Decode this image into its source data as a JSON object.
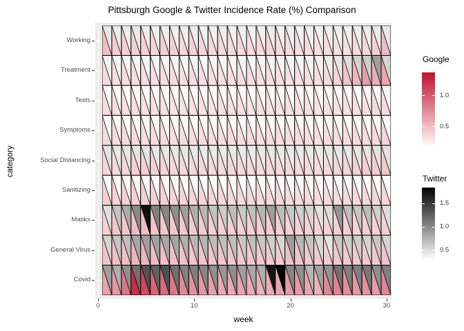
{
  "chart_data": {
    "type": "heatmap",
    "variant": "split-triangle-cells",
    "title": "Pittsburgh Google & Twitter Incidence Rate (%) Comparison",
    "xlabel": "week",
    "ylabel": "category",
    "x_ticks": [
      0,
      10,
      20,
      30
    ],
    "x_minor_ticks": [
      5,
      15,
      25
    ],
    "x_range": [
      0,
      30.5
    ],
    "weeks": 30,
    "panel_background": "#ebebeb",
    "cell_border_color": "#000000",
    "triangle_layout": {
      "lower_left": "Google",
      "upper_right": "Twitter"
    },
    "categories": [
      "Working",
      "Treatment",
      "Tests",
      "Symptoms",
      "Social Distancing",
      "Sanitizing",
      "Masks",
      "General Virus",
      "Covid"
    ],
    "series": [
      {
        "category": "Working",
        "google": [
          0.45,
          0.38,
          0.36,
          0.36,
          0.35,
          0.33,
          0.35,
          0.35,
          0.32,
          0.34,
          0.32,
          0.31,
          0.31,
          0.3,
          0.31,
          0.3,
          0.3,
          0.33,
          0.3,
          0.3,
          0.28,
          0.3,
          0.27,
          0.3,
          0.27,
          0.27,
          0.3,
          0.32,
          0.36,
          0.46
        ],
        "twitter": [
          0.4,
          0.38,
          0.36,
          0.38,
          0.36,
          0.35,
          0.36,
          0.35,
          0.35,
          0.36,
          0.35,
          0.34,
          0.35,
          0.34,
          0.35,
          0.34,
          0.35,
          0.36,
          0.34,
          0.35,
          0.33,
          0.34,
          0.33,
          0.34,
          0.33,
          0.34,
          0.35,
          0.36,
          0.38,
          0.4
        ]
      },
      {
        "category": "Treatment",
        "google": [
          0.3,
          0.29,
          0.28,
          0.29,
          0.28,
          0.28,
          0.28,
          0.28,
          0.27,
          0.28,
          0.27,
          0.27,
          0.27,
          0.27,
          0.27,
          0.27,
          0.27,
          0.28,
          0.27,
          0.27,
          0.27,
          0.28,
          0.28,
          0.3,
          0.33,
          0.42,
          0.5,
          0.63,
          0.55,
          0.58
        ],
        "twitter": [
          0.32,
          0.31,
          0.31,
          0.32,
          0.31,
          0.31,
          0.31,
          0.3,
          0.31,
          0.31,
          0.3,
          0.31,
          0.3,
          0.31,
          0.31,
          0.3,
          0.31,
          0.31,
          0.31,
          0.31,
          0.31,
          0.32,
          0.33,
          0.36,
          0.4,
          0.46,
          0.52,
          0.56,
          0.85,
          0.52
        ]
      },
      {
        "category": "Tests",
        "google": [
          0.28,
          0.27,
          0.26,
          0.27,
          0.26,
          0.26,
          0.27,
          0.26,
          0.26,
          0.26,
          0.26,
          0.25,
          0.26,
          0.26,
          0.26,
          0.25,
          0.26,
          0.26,
          0.25,
          0.26,
          0.25,
          0.26,
          0.25,
          0.26,
          0.26,
          0.26,
          0.27,
          0.27,
          0.28,
          0.29
        ],
        "twitter": [
          0.29,
          0.28,
          0.28,
          0.29,
          0.28,
          0.28,
          0.28,
          0.28,
          0.28,
          0.28,
          0.28,
          0.28,
          0.28,
          0.28,
          0.28,
          0.28,
          0.28,
          0.28,
          0.28,
          0.28,
          0.28,
          0.28,
          0.28,
          0.28,
          0.28,
          0.28,
          0.28,
          0.29,
          0.29,
          0.3
        ]
      },
      {
        "category": "Symptoms",
        "google": [
          0.3,
          0.29,
          0.29,
          0.3,
          0.29,
          0.29,
          0.29,
          0.29,
          0.28,
          0.29,
          0.28,
          0.28,
          0.28,
          0.28,
          0.28,
          0.28,
          0.28,
          0.29,
          0.28,
          0.28,
          0.28,
          0.29,
          0.28,
          0.29,
          0.29,
          0.29,
          0.3,
          0.3,
          0.31,
          0.32
        ],
        "twitter": [
          0.29,
          0.28,
          0.28,
          0.28,
          0.28,
          0.28,
          0.28,
          0.28,
          0.28,
          0.28,
          0.28,
          0.28,
          0.28,
          0.28,
          0.28,
          0.28,
          0.28,
          0.28,
          0.28,
          0.28,
          0.28,
          0.28,
          0.28,
          0.28,
          0.28,
          0.28,
          0.28,
          0.28,
          0.29,
          0.29
        ]
      },
      {
        "category": "Social Distancing",
        "google": [
          0.32,
          0.31,
          0.31,
          0.35,
          0.36,
          0.35,
          0.33,
          0.32,
          0.31,
          0.31,
          0.31,
          0.3,
          0.3,
          0.3,
          0.31,
          0.3,
          0.3,
          0.31,
          0.3,
          0.3,
          0.3,
          0.31,
          0.3,
          0.31,
          0.32,
          0.33,
          0.36,
          0.37,
          0.38,
          0.4
        ],
        "twitter": [
          0.42,
          0.4,
          0.4,
          0.42,
          0.42,
          0.41,
          0.4,
          0.4,
          0.4,
          0.4,
          0.39,
          0.39,
          0.39,
          0.39,
          0.39,
          0.39,
          0.39,
          0.4,
          0.39,
          0.39,
          0.38,
          0.39,
          0.38,
          0.39,
          0.39,
          0.4,
          0.41,
          0.41,
          0.42,
          0.43
        ]
      },
      {
        "category": "Sanitizing",
        "google": [
          0.36,
          0.35,
          0.35,
          0.36,
          0.36,
          0.35,
          0.34,
          0.34,
          0.33,
          0.33,
          0.32,
          0.32,
          0.31,
          0.31,
          0.31,
          0.3,
          0.3,
          0.31,
          0.3,
          0.3,
          0.29,
          0.3,
          0.29,
          0.3,
          0.3,
          0.3,
          0.31,
          0.31,
          0.32,
          0.33
        ],
        "twitter": [
          0.3,
          0.29,
          0.29,
          0.3,
          0.29,
          0.29,
          0.29,
          0.29,
          0.28,
          0.28,
          0.28,
          0.28,
          0.28,
          0.28,
          0.28,
          0.28,
          0.28,
          0.28,
          0.28,
          0.28,
          0.28,
          0.28,
          0.28,
          0.28,
          0.28,
          0.28,
          0.28,
          0.29,
          0.29,
          0.29
        ]
      },
      {
        "category": "Masks",
        "google": [
          0.36,
          0.4,
          0.41,
          0.45,
          0.46,
          0.42,
          0.41,
          0.4,
          0.39,
          0.38,
          0.37,
          0.36,
          0.35,
          0.36,
          0.35,
          0.35,
          0.36,
          0.38,
          0.35,
          0.35,
          0.34,
          0.35,
          0.33,
          0.34,
          0.37,
          0.36,
          0.35,
          0.36,
          0.35,
          0.36
        ],
        "twitter": [
          0.45,
          0.62,
          0.78,
          0.98,
          1.75,
          1.05,
          1.0,
          0.95,
          0.85,
          0.75,
          0.7,
          0.62,
          0.57,
          0.66,
          0.6,
          0.65,
          0.7,
          0.86,
          0.66,
          0.6,
          0.55,
          0.5,
          0.42,
          0.46,
          0.92,
          0.66,
          0.6,
          0.66,
          0.56,
          0.46
        ]
      },
      {
        "category": "General Virus",
        "google": [
          0.42,
          0.45,
          0.46,
          0.5,
          0.5,
          0.47,
          0.45,
          0.44,
          0.43,
          0.42,
          0.42,
          0.41,
          0.41,
          0.41,
          0.4,
          0.41,
          0.4,
          0.4,
          0.39,
          0.43,
          0.42,
          0.41,
          0.39,
          0.38,
          0.41,
          0.4,
          0.4,
          0.4,
          0.41,
          0.42
        ],
        "twitter": [
          0.52,
          0.62,
          0.66,
          0.8,
          0.86,
          0.85,
          0.8,
          0.8,
          0.75,
          0.7,
          0.7,
          0.66,
          0.65,
          0.65,
          0.6,
          0.65,
          0.6,
          0.56,
          0.5,
          0.86,
          0.7,
          0.62,
          0.5,
          0.42,
          0.6,
          0.56,
          0.56,
          0.52,
          0.6,
          0.52
        ]
      },
      {
        "category": "Covid",
        "google": [
          0.6,
          0.66,
          0.85,
          1.25,
          1.1,
          0.95,
          0.9,
          0.85,
          0.75,
          0.7,
          0.66,
          0.62,
          0.57,
          0.57,
          0.6,
          0.56,
          0.52,
          0.56,
          0.6,
          0.65,
          0.65,
          0.6,
          0.52,
          0.76,
          0.78,
          0.72,
          0.66,
          0.7,
          0.66,
          0.76
        ],
        "twitter": [
          0.85,
          0.76,
          0.95,
          1.15,
          1.35,
          1.25,
          1.35,
          1.15,
          1.05,
          1.05,
          1.0,
          0.95,
          0.9,
          0.95,
          0.85,
          0.8,
          0.76,
          1.72,
          1.84,
          1.02,
          0.96,
          0.72,
          0.84,
          0.92,
          1.15,
          1.05,
          1.05,
          1.1,
          0.95,
          1.05
        ]
      }
    ],
    "legends": [
      {
        "name": "Google",
        "low_color": "#FFF5F5",
        "high_color": "#BE122E",
        "domain": [
          0.15,
          1.4
        ],
        "bar_domain": [
          0.2,
          1.37
        ],
        "ticks": [
          1.0,
          0.5
        ]
      },
      {
        "name": "Twitter",
        "low_color": "#FFFFFF",
        "high_color": "#000000",
        "domain": [
          0.25,
          1.85
        ],
        "bar_domain": [
          0.28,
          1.84
        ],
        "ticks": [
          1.5,
          1.0,
          0.5
        ]
      }
    ]
  }
}
